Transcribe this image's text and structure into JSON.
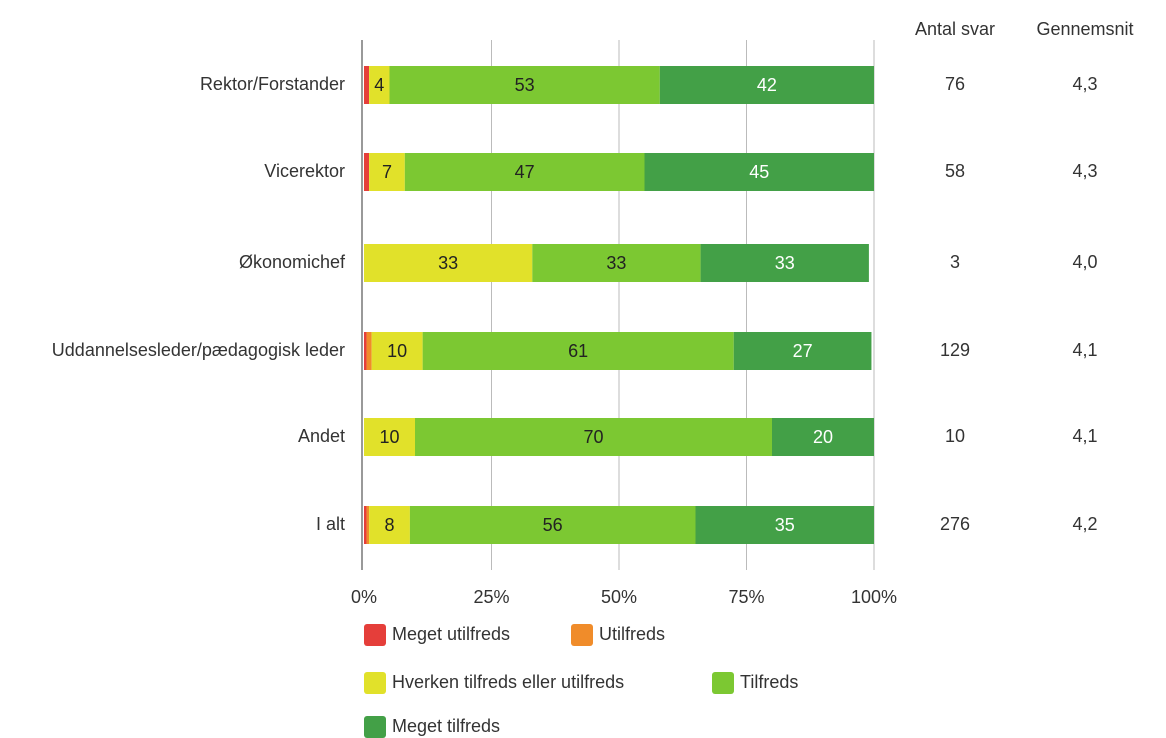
{
  "chart_data": {
    "type": "stacked-bar-horizontal",
    "categories": [
      "Rektor/Forstander",
      "Vicerektor",
      "Økonomichef",
      "Uddannelsesleder/pædagogisk leder",
      "Andet",
      "I alt"
    ],
    "series": [
      {
        "name": "Meget utilfreds",
        "color": "#e53e3a",
        "values": [
          1,
          1,
          0,
          0.5,
          0,
          0.5
        ]
      },
      {
        "name": "Utilfreds",
        "color": "#f08c2a",
        "values": [
          0,
          0,
          0,
          1,
          0,
          0.5
        ]
      },
      {
        "name": "Hverken tilfreds eller utilfreds",
        "color": "#e1e12a",
        "values": [
          4,
          7,
          33,
          10,
          10,
          8
        ]
      },
      {
        "name": "Tilfreds",
        "color": "#7cc832",
        "values": [
          53,
          47,
          33,
          61,
          70,
          56
        ]
      },
      {
        "name": "Meget tilfreds",
        "color": "#43a047",
        "values": [
          42,
          45,
          33,
          27,
          20,
          35
        ]
      }
    ],
    "xlim": [
      0,
      100
    ],
    "xticks": [
      {
        "value": 0,
        "label": "0%"
      },
      {
        "value": 25,
        "label": "25%"
      },
      {
        "value": 50,
        "label": "50%"
      },
      {
        "value": 75,
        "label": "75%"
      },
      {
        "value": 100,
        "label": "100%"
      }
    ],
    "grid": true,
    "columns": [
      {
        "name": "Antal svar",
        "values": [
          76,
          58,
          3,
          129,
          10,
          276
        ]
      },
      {
        "name": "Gennemsnit",
        "values": [
          4.3,
          4.3,
          4.0,
          4.1,
          4.1,
          4.2
        ],
        "value_labels": [
          "4,3",
          "4,3",
          "4,0",
          "4,1",
          "4,1",
          "4,2"
        ]
      }
    ]
  }
}
